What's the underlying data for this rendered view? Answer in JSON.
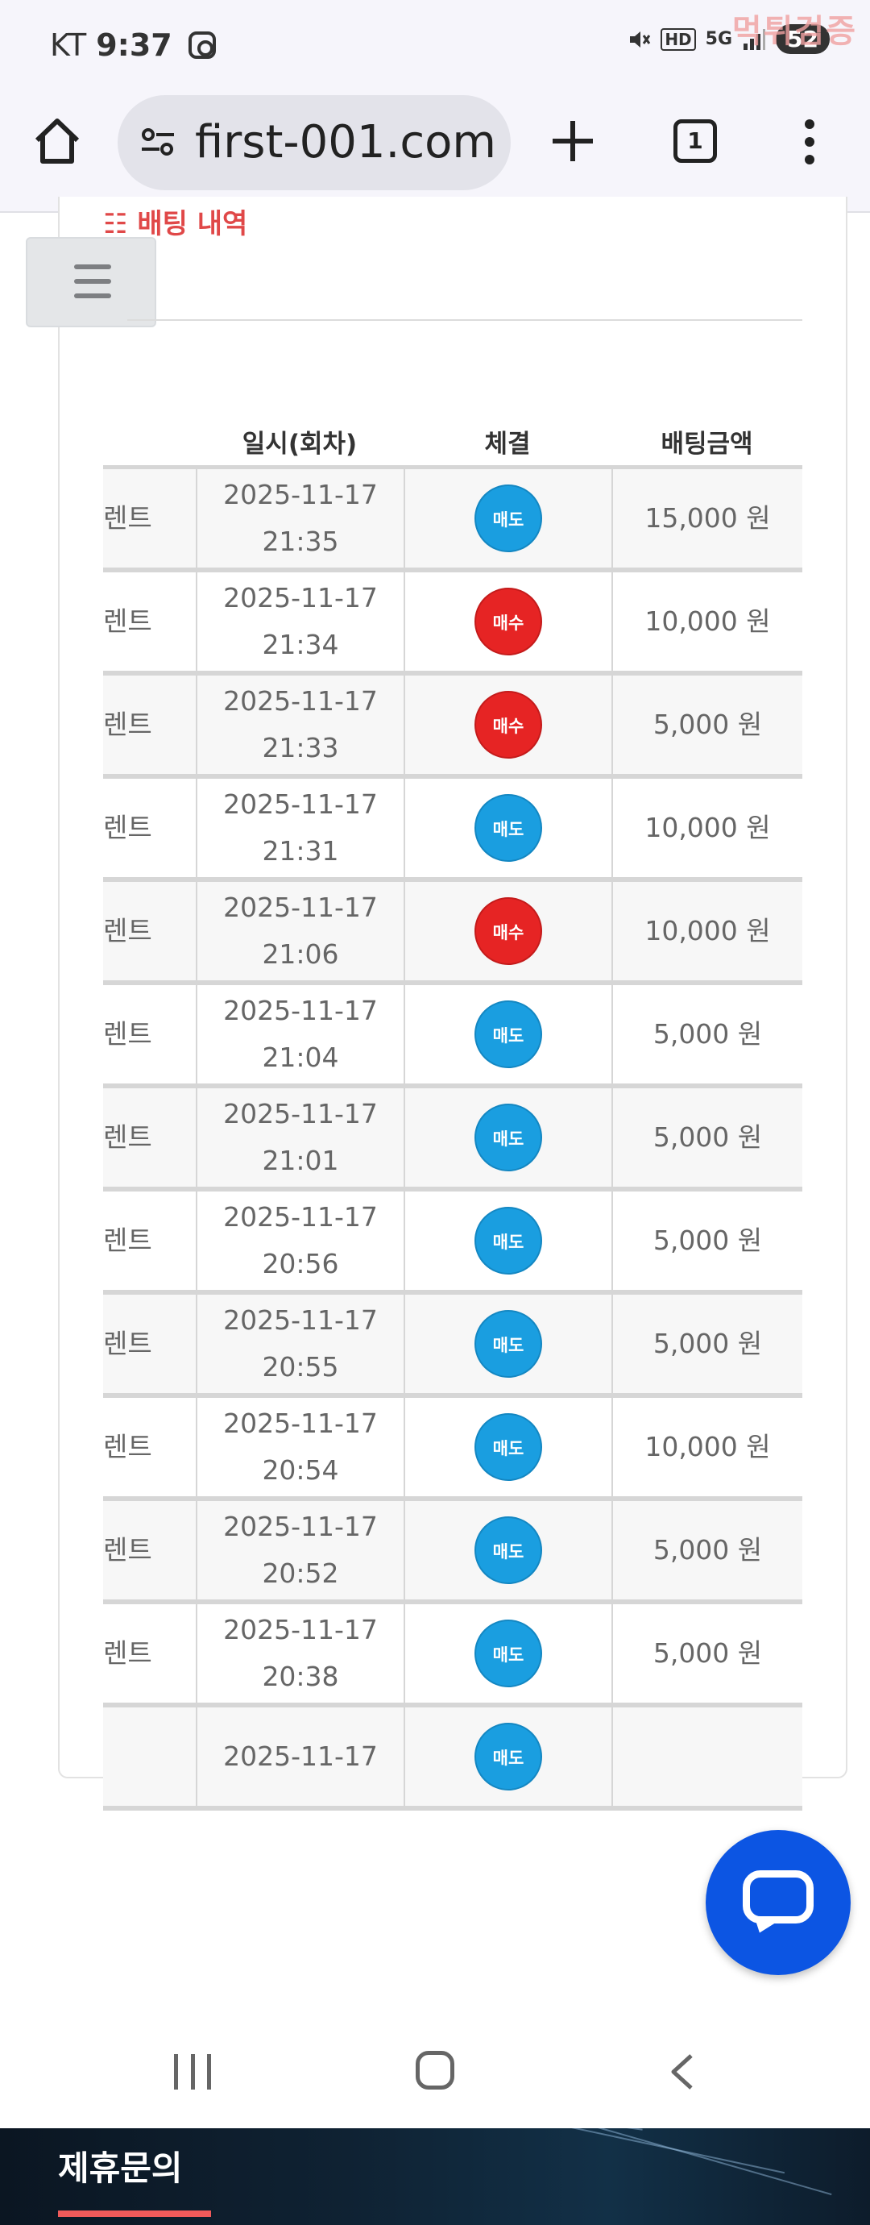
{
  "status_bar": {
    "carrier": "KT",
    "time": "9:37",
    "hd": "HD",
    "network": "5G",
    "battery": "52",
    "watermark": "먹튀검증"
  },
  "browser": {
    "url": "first-001.com",
    "tab_count": "1"
  },
  "section": {
    "title": "☷ 배팅 내역"
  },
  "table": {
    "headers": [
      "",
      "일시(회차)",
      "체결",
      "배팅금액"
    ],
    "rows": [
      {
        "game": "렌트",
        "date": "2025-11-17",
        "time": "21:35",
        "type": "매도",
        "amount": "15,000 원"
      },
      {
        "game": "렌트",
        "date": "2025-11-17",
        "time": "21:34",
        "type": "매수",
        "amount": "10,000 원"
      },
      {
        "game": "렌트",
        "date": "2025-11-17",
        "time": "21:33",
        "type": "매수",
        "amount": "5,000 원"
      },
      {
        "game": "렌트",
        "date": "2025-11-17",
        "time": "21:31",
        "type": "매도",
        "amount": "10,000 원"
      },
      {
        "game": "렌트",
        "date": "2025-11-17",
        "time": "21:06",
        "type": "매수",
        "amount": "10,000 원"
      },
      {
        "game": "렌트",
        "date": "2025-11-17",
        "time": "21:04",
        "type": "매도",
        "amount": "5,000 원"
      },
      {
        "game": "렌트",
        "date": "2025-11-17",
        "time": "21:01",
        "type": "매도",
        "amount": "5,000 원"
      },
      {
        "game": "렌트",
        "date": "2025-11-17",
        "time": "20:56",
        "type": "매도",
        "amount": "5,000 원"
      },
      {
        "game": "렌트",
        "date": "2025-11-17",
        "time": "20:55",
        "type": "매도",
        "amount": "5,000 원"
      },
      {
        "game": "렌트",
        "date": "2025-11-17",
        "time": "20:54",
        "type": "매도",
        "amount": "10,000 원"
      },
      {
        "game": "렌트",
        "date": "2025-11-17",
        "time": "20:52",
        "type": "매도",
        "amount": "5,000 원"
      },
      {
        "game": "렌트",
        "date": "2025-11-17",
        "time": "20:38",
        "type": "매도",
        "amount": "5,000 원"
      },
      {
        "game": "",
        "date": "2025-11-17",
        "time": "",
        "type": "매도",
        "amount": ""
      }
    ]
  },
  "footer": {
    "title": "제휴문의"
  },
  "colors": {
    "sell": "#1a9ee0",
    "buy": "#e62424",
    "title_red": "#e04848",
    "chat_blue": "#0c55e3"
  },
  "icons": [
    "home-icon",
    "tune-icon",
    "plus-icon",
    "tabs-icon",
    "more-icon",
    "menu-icon",
    "chat-icon",
    "nav-recent-icon",
    "nav-home-icon",
    "nav-back-icon"
  ]
}
